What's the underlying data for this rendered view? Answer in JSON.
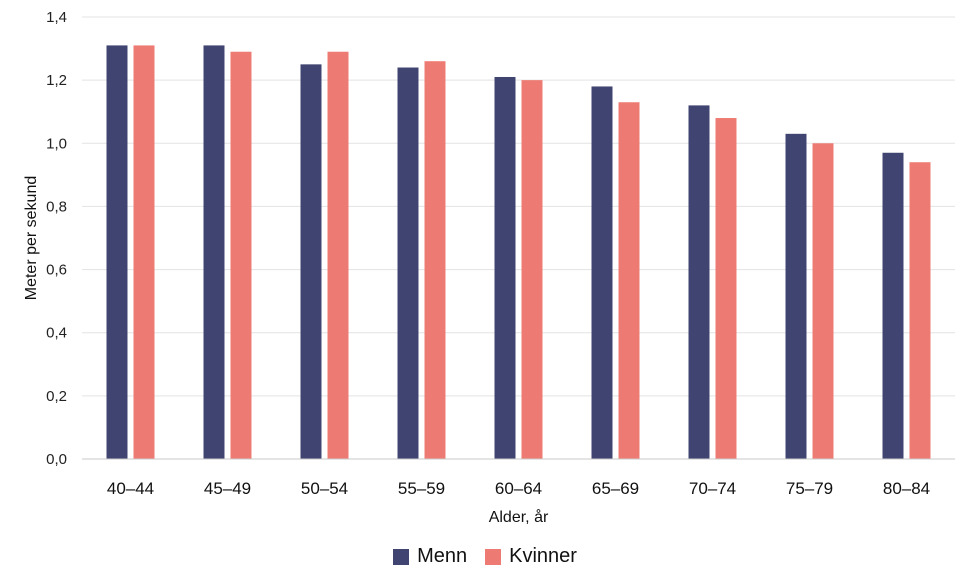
{
  "chart_data": {
    "type": "bar",
    "title": "",
    "xlabel": "Alder, år",
    "ylabel": "Meter per sekund",
    "ylim": [
      0,
      1.4
    ],
    "yticks": [
      "0,0",
      "0,2",
      "0,4",
      "0,6",
      "0,8",
      "1,0",
      "1,2",
      "1,4"
    ],
    "ytick_values": [
      0,
      0.2,
      0.4,
      0.6,
      0.8,
      1.0,
      1.2,
      1.4
    ],
    "grid": true,
    "legend_position": "bottom",
    "categories": [
      "40–44",
      "45–49",
      "50–54",
      "55–59",
      "60–64",
      "65–69",
      "70–74",
      "75–79",
      "80–84"
    ],
    "series": [
      {
        "name": "Menn",
        "color": "#3f4470",
        "values": [
          1.31,
          1.31,
          1.25,
          1.24,
          1.21,
          1.18,
          1.12,
          1.03,
          0.97
        ]
      },
      {
        "name": "Kvinner",
        "color": "#ee7b73",
        "values": [
          1.31,
          1.29,
          1.29,
          1.26,
          1.2,
          1.13,
          1.08,
          1.0,
          0.94
        ]
      }
    ]
  }
}
